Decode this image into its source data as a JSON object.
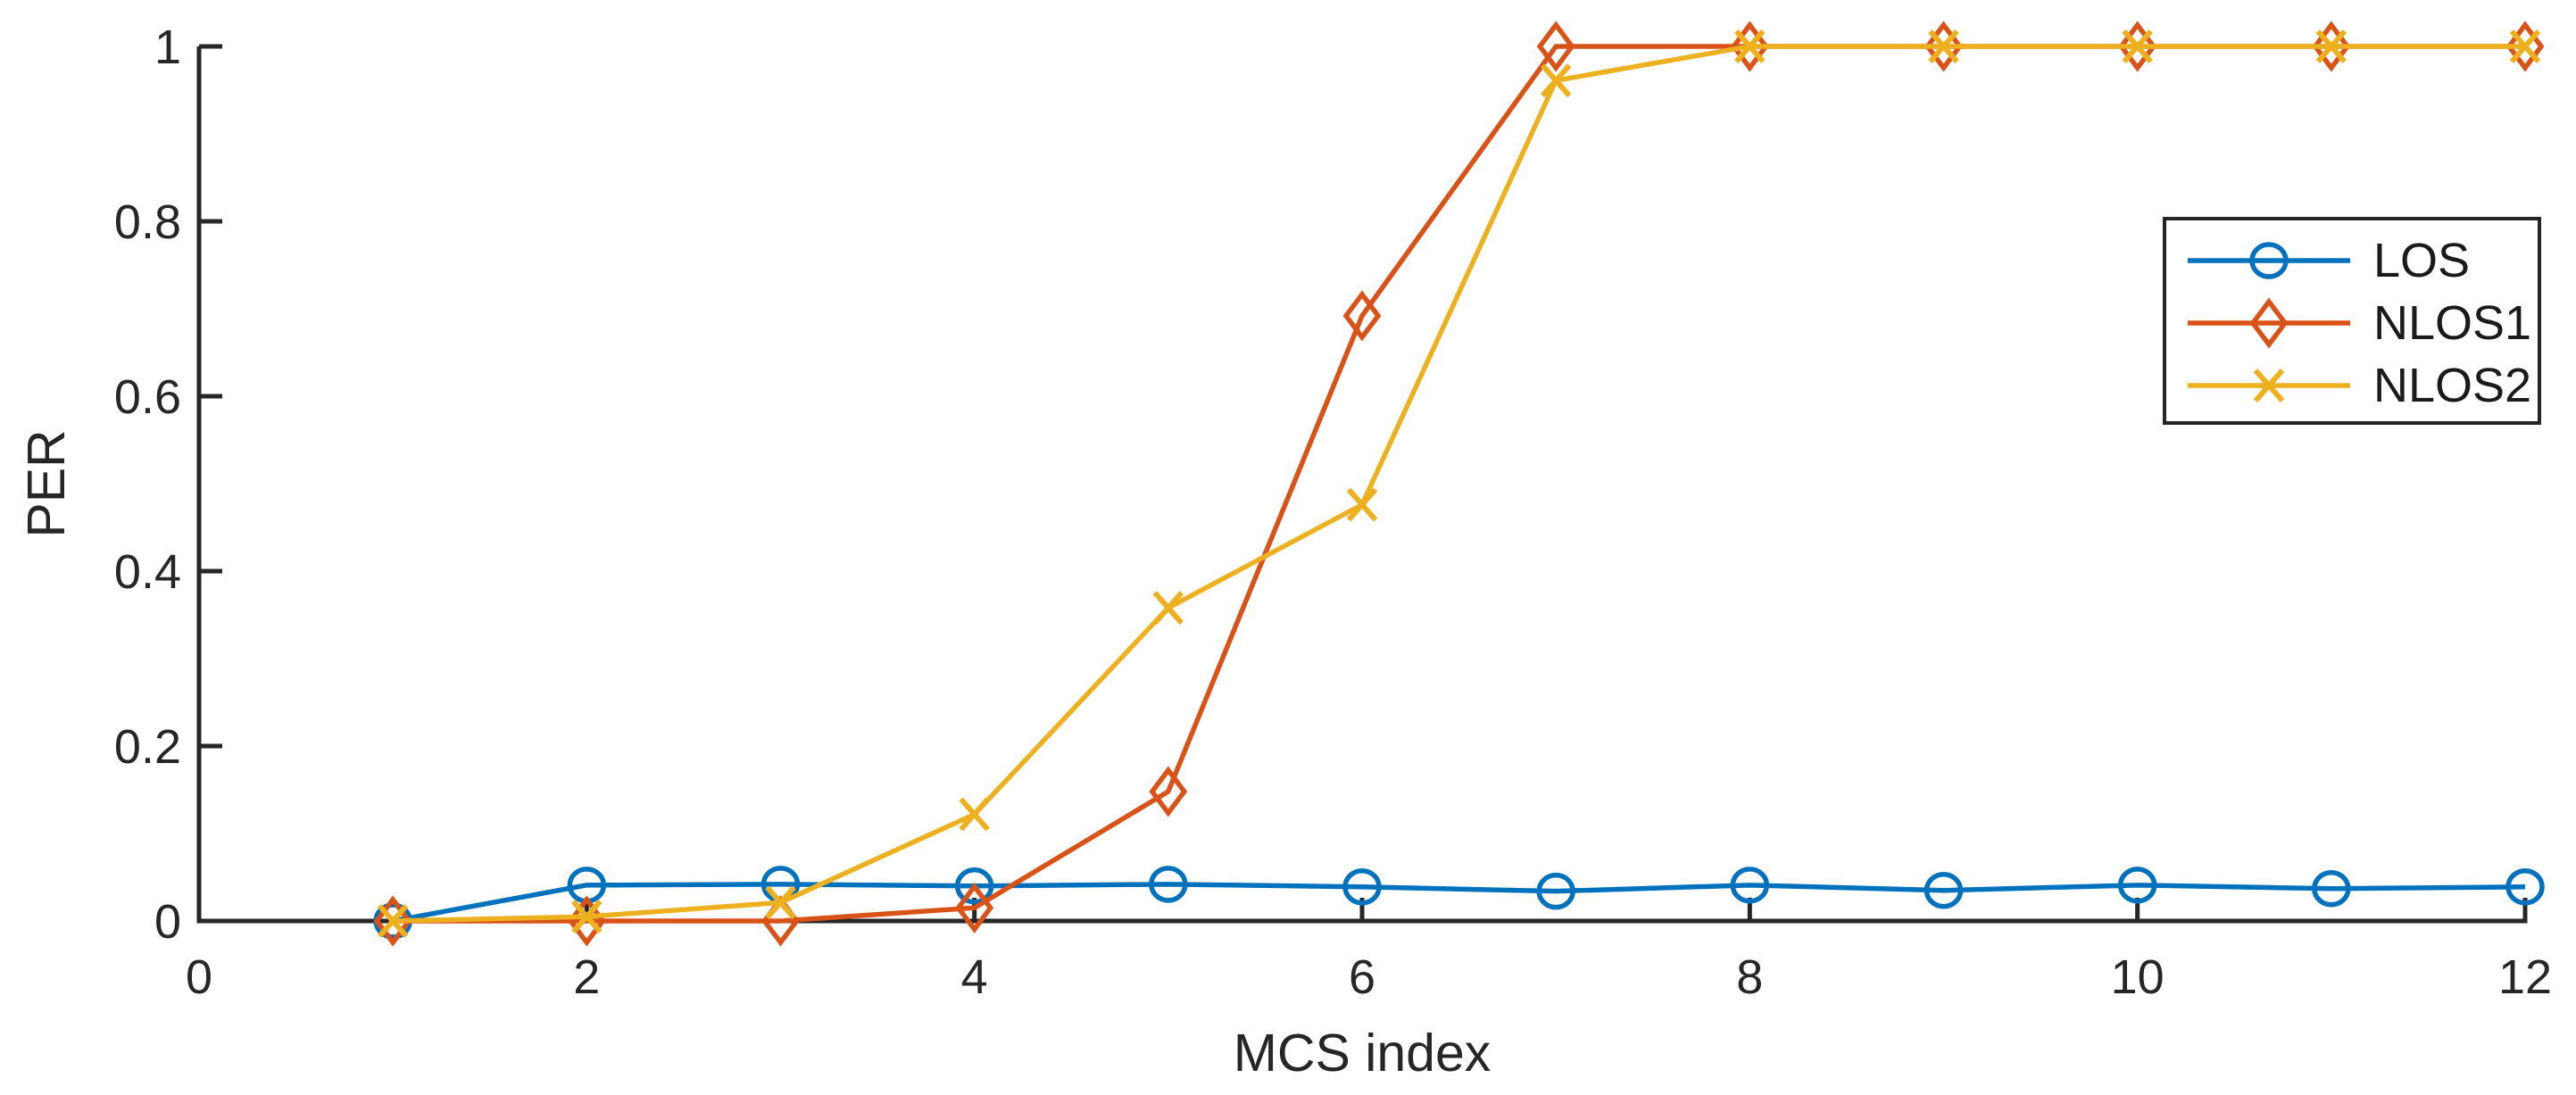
{
  "chart_data": {
    "type": "line",
    "title": "",
    "xlabel": "MCS index",
    "ylabel": "PER",
    "x": [
      1,
      2,
      3,
      4,
      5,
      6,
      7,
      8,
      9,
      10,
      11,
      12
    ],
    "series": [
      {
        "name": "LOS",
        "color": "#0072BD",
        "marker": "circle",
        "values": [
          0,
          0.041,
          0.042,
          0.04,
          0.042,
          0.039,
          0.034,
          0.041,
          0.035,
          0.041,
          0.037,
          0.039
        ]
      },
      {
        "name": "NLOS1",
        "color": "#D95319",
        "marker": "diamond",
        "values": [
          0,
          0,
          0,
          0.015,
          0.148,
          0.692,
          1,
          1,
          1,
          1,
          1,
          1
        ]
      },
      {
        "name": "NLOS2",
        "color": "#EDB120",
        "marker": "x",
        "values": [
          0,
          0.005,
          0.021,
          0.122,
          0.358,
          0.476,
          0.961,
          1,
          1,
          1,
          1,
          1
        ]
      }
    ],
    "xlim": [
      0,
      12
    ],
    "ylim": [
      0,
      1
    ],
    "xticks": [
      0,
      2,
      4,
      6,
      8,
      10,
      12
    ],
    "xtick_labels": [
      "0",
      "2",
      "4",
      "6",
      "8",
      "10",
      "12"
    ],
    "yticks": [
      0,
      0.2,
      0.4,
      0.6,
      0.8,
      1
    ],
    "ytick_labels": [
      "0",
      "0.2",
      "0.4",
      "0.6",
      "0.8",
      "1"
    ],
    "grid": false,
    "legend_position": "upper-right",
    "axis_color": "#262626",
    "tick_label_color": "#262626",
    "background": "#ffffff"
  }
}
